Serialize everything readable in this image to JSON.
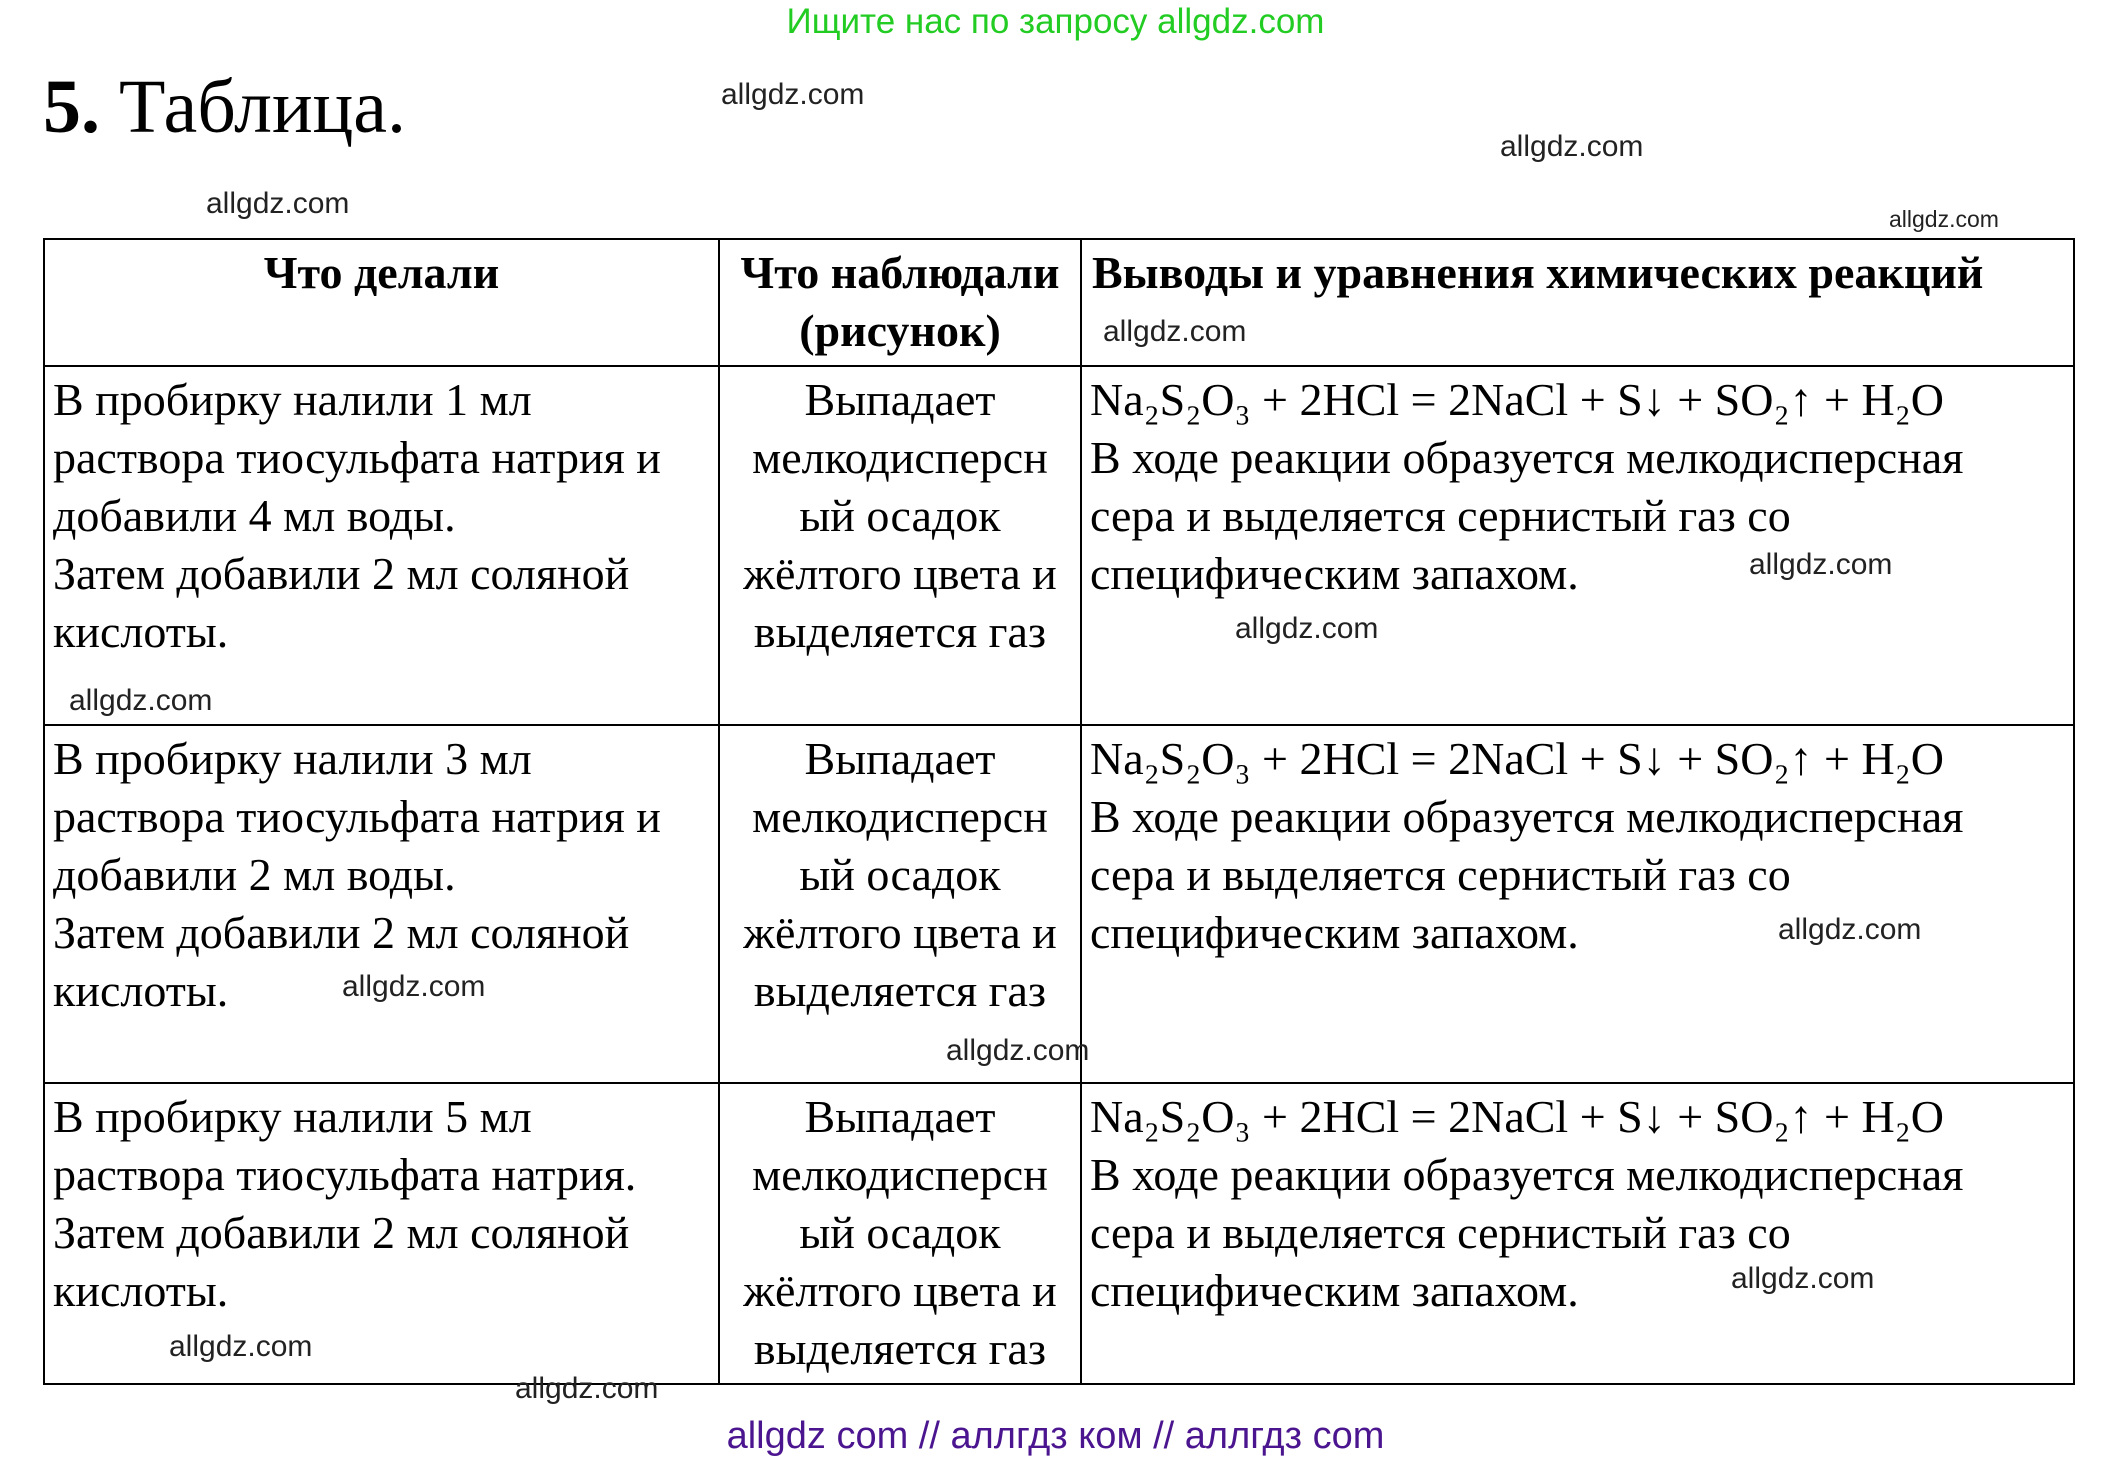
{
  "header": {
    "search_hint": "Ищите нас по запросу allgdz.com"
  },
  "task": {
    "number": "5.",
    "title": "Таблица."
  },
  "table": {
    "columns": [
      [
        "Что делали"
      ],
      [
        "Что наблюдали",
        "(рисунок)"
      ],
      [
        "Выводы и уравнения химических реакций"
      ]
    ],
    "rows": [
      {
        "did": [
          "В пробирку налили 1 мл",
          "раствора тиосульфата натрия и",
          "добавили 4 мл воды.",
          "Затем добавили 2 мл соляной",
          "кислоты."
        ],
        "observed": [
          "Выпадает",
          "мелкодисперсн",
          "ый осадок",
          "жёлтого цвета и",
          "выделяется газ"
        ],
        "conclusion": [
          "Na₂S₂O₃ + 2HCl = 2NaCl + S↓ + SO₂↑ + H₂O",
          "В ходе реакции образуется мелкодисперсная",
          "сера и выделяется сернистый газ со",
          "специфическим запахом."
        ]
      },
      {
        "did": [
          "В пробирку налили 3 мл",
          "раствора тиосульфата натрия и",
          "добавили 2 мл воды.",
          "Затем добавили 2 мл соляной",
          "кислоты."
        ],
        "observed": [
          "Выпадает",
          "мелкодисперсн",
          "ый осадок",
          "жёлтого цвета и",
          "выделяется газ"
        ],
        "conclusion": [
          "Na₂S₂O₃ + 2HCl = 2NaCl + S↓ + SO₂↑ + H₂O",
          "В ходе реакции образуется мелкодисперсная",
          "сера и выделяется сернистый газ со",
          "специфическим запахом."
        ]
      },
      {
        "did": [
          "В пробирку налили 5 мл",
          "раствора тиосульфата натрия.",
          "Затем добавили 2 мл соляной",
          "кислоты."
        ],
        "observed": [
          "Выпадает",
          "мелкодисперсн",
          "ый осадок",
          "жёлтого цвета и",
          "выделяется газ"
        ],
        "conclusion": [
          "Na₂S₂O₃ + 2HCl = 2NaCl + S↓ + SO₂↑ + H₂O",
          "В ходе реакции образуется мелкодисперсная",
          "сера и выделяется сернистый газ со",
          "специфическим запахом."
        ]
      }
    ]
  },
  "watermarks": [
    "allgdz.com",
    "allgdz.com",
    "allgdz.com",
    "allgdz.com",
    "allgdz.com",
    "allgdz.com",
    "allgdz.com",
    "allgdz.com",
    "allgdz.com",
    "allgdz.com",
    "allgdz.com",
    "allgdz.com",
    "allgdz.com",
    "allgdz.com"
  ],
  "footer": {
    "text": "allgdz com  //  аллгдз ком  //  аллгдз com"
  },
  "colors": {
    "search_hint": "#22cc22",
    "footer": "#4b1590"
  }
}
